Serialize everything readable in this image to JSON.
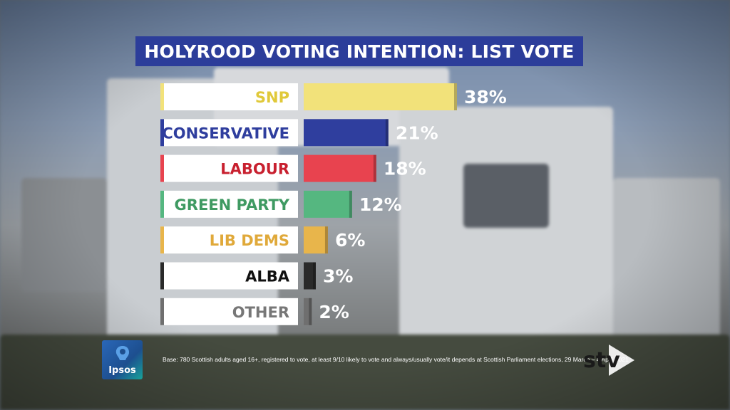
{
  "title": "HOLYROOD VOTING INTENTION: LIST VOTE",
  "chart_data": {
    "type": "bar",
    "orientation": "horizontal",
    "title": "HOLYROOD VOTING INTENTION: LIST VOTE",
    "categories": [
      "SNP",
      "CONSERVATIVE",
      "LABOUR",
      "GREEN PARTY",
      "LIB DEMS",
      "ALBA",
      "OTHER"
    ],
    "values": [
      38,
      21,
      18,
      12,
      6,
      3,
      2
    ],
    "value_labels": [
      "38%",
      "21%",
      "18%",
      "12%",
      "6%",
      "3%",
      "2%"
    ],
    "colors": [
      "#f2e27a",
      "#2f3e9e",
      "#e8434f",
      "#55b780",
      "#e8b54b",
      "#2a2a2a",
      "#6f6f6f"
    ],
    "label_colors": [
      "#e0c93a",
      "#2f3e9e",
      "#c8202f",
      "#3f9a62",
      "#e0a93a",
      "#111111",
      "#777777"
    ],
    "unit": "%",
    "xlim": [
      0,
      38
    ],
    "grid": false,
    "legend": "none"
  },
  "footer": {
    "base_note": "Base: 780 Scottish adults aged 16+, registered to vote, at least 9/10 likely to vote and always/usually vote/it depends at Scottish Parliament elections, 29 March – 4 April 2021",
    "pollster_logo_text": "Ipsos",
    "broadcaster_logo_text": "stv"
  }
}
